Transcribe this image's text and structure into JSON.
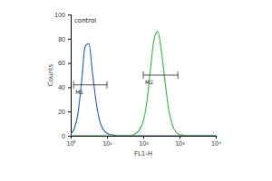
{
  "chart_data": {
    "type": "line",
    "log": "x",
    "x_label": "FL1-H",
    "y_label": "Counts",
    "x": [
      1,
      1.26,
      1.58,
      2,
      2.51,
      3.16,
      3.98,
      5.01,
      6.31,
      7.94,
      10,
      12.6,
      15.8,
      20,
      25.1,
      31.6,
      39.8,
      50.1,
      63.1,
      79.4,
      100,
      126,
      158,
      200,
      251,
      316,
      398,
      501,
      631,
      794,
      1000,
      1259,
      1585,
      1995,
      2512,
      3162,
      3981,
      5012,
      6310,
      7943,
      10000
    ],
    "series": [
      {
        "name": "control",
        "color": "#2a5db0",
        "values": [
          2,
          6,
          18,
          45,
          74,
          76,
          52,
          28,
          12,
          5,
          2,
          1,
          0.5,
          0,
          0,
          0,
          0,
          0,
          0,
          0,
          0,
          0,
          0,
          0,
          0,
          0,
          0,
          0,
          0,
          0,
          0,
          0,
          0,
          0,
          0,
          0,
          0,
          0,
          0,
          0,
          0
        ]
      },
      {
        "color": "#3cae4a",
        "values": [
          0,
          0,
          0,
          0,
          0,
          0,
          0,
          0,
          0,
          0,
          0,
          0,
          0,
          0,
          0,
          0,
          0,
          0.5,
          2,
          5,
          12,
          28,
          55,
          80,
          86,
          70,
          45,
          22,
          9,
          3,
          1,
          0.5,
          0,
          0,
          0,
          0,
          0,
          0,
          0,
          0,
          0
        ]
      }
    ],
    "xlim": [
      1,
      10000
    ],
    "xticks": [
      {
        "value": 1,
        "label": "10⁰"
      },
      {
        "value": 10,
        "label": "10¹"
      },
      {
        "value": 100,
        "label": "10²"
      },
      {
        "value": 1000,
        "label": "10³"
      },
      {
        "value": 10000,
        "label": "10⁴"
      }
    ],
    "ylim": [
      0,
      100
    ],
    "yticks": [
      0,
      20,
      40,
      60,
      80,
      100
    ],
    "annotations": [
      {
        "text": "M1",
        "x": [
          1.2,
          10
        ],
        "y": 42
      },
      {
        "text": "M2",
        "x": [
          100,
          900
        ],
        "y": 50
      }
    ]
  }
}
